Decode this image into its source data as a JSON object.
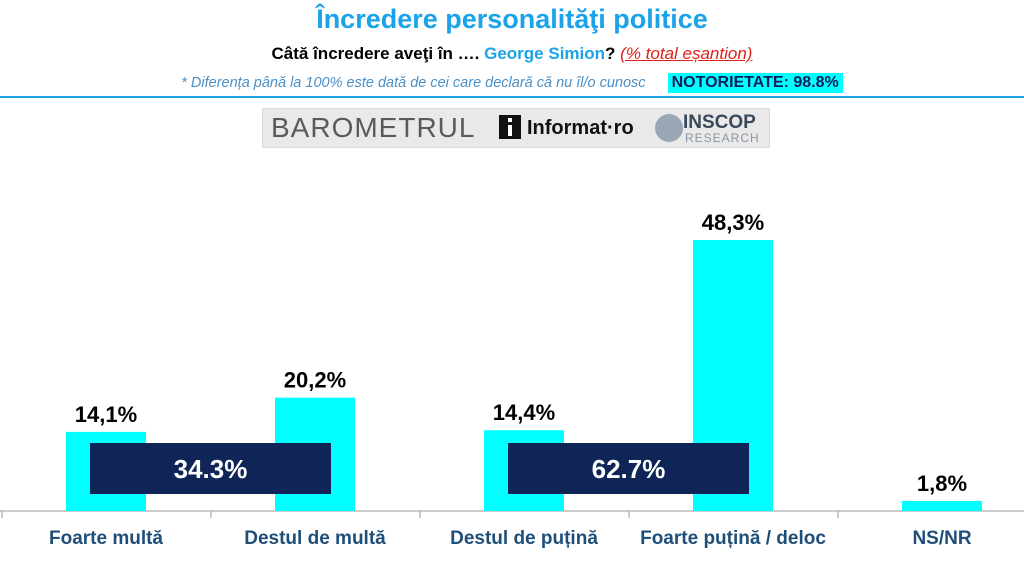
{
  "header": {
    "title": "Încredere personalităţi politice",
    "question_prefix": "Câtă încredere aveţi în ….",
    "person": "George Simion",
    "question_mark": "?",
    "sample_note": "(% total eșantion)",
    "footnote": "* Diferența până la 100% este dată de cei care declară că nu îl/o cunosc",
    "notoriety": "NOTORIETATE: 98.8%"
  },
  "logos": {
    "barometer": "BAROMETRUL",
    "informat": "Informat·ro",
    "inscop": "INSCOP",
    "inscop_sub": "RESEARCH"
  },
  "colors": {
    "bar": "#00ffff",
    "group_box": "#0f2557",
    "accent": "#1aa3e8",
    "category_text": "#1f4e79"
  },
  "chart_data": {
    "type": "bar",
    "title": "Încredere personalităţi politice",
    "categories": [
      "Foarte multă",
      "Destul de multă",
      "Destul de puțină",
      "Foarte puțină / deloc",
      "NS/NR"
    ],
    "values": [
      14.1,
      20.2,
      14.4,
      48.3,
      1.8
    ],
    "value_labels": [
      "14,1%",
      "20,2%",
      "14,4%",
      "48,3%",
      "1,8%"
    ],
    "ylim": [
      0,
      55
    ],
    "xlabel": "",
    "ylabel": "",
    "grid": false,
    "group_totals": [
      {
        "label": "34.3%",
        "value": 34.3,
        "categories": [
          "Foarte multă",
          "Destul de multă"
        ]
      },
      {
        "label": "62.7%",
        "value": 62.7,
        "categories": [
          "Destul de puțină",
          "Foarte puțină / deloc"
        ]
      }
    ]
  }
}
